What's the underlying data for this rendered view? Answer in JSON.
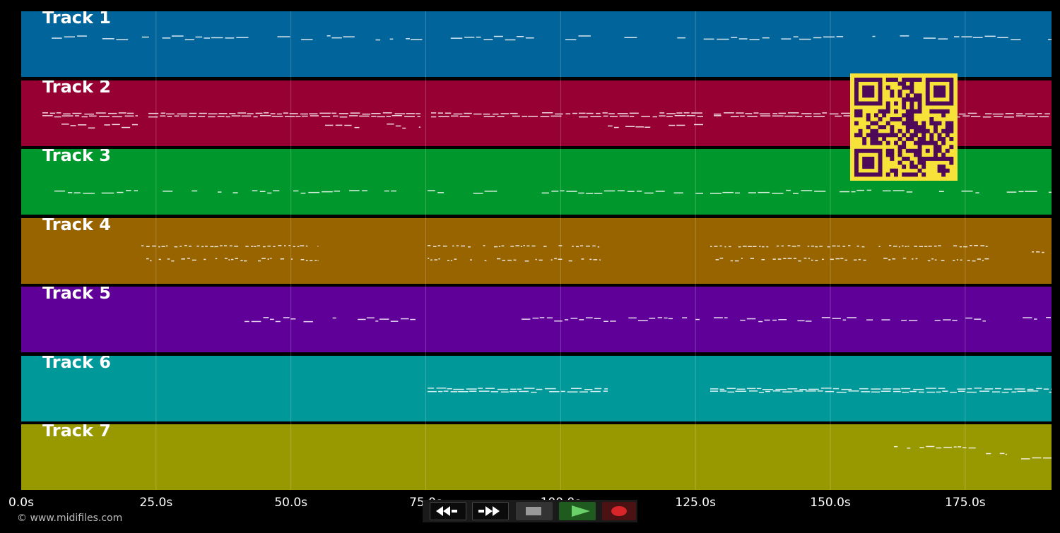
{
  "colors": {
    "background": "#000000",
    "qr_fg": "#4e0a58",
    "qr_bg": "#f7e23a"
  },
  "tracks": [
    {
      "label": "Track 1",
      "color": "#01649a",
      "pattern": "melody"
    },
    {
      "label": "Track 2",
      "color": "#970032",
      "pattern": "chords"
    },
    {
      "label": "Track 3",
      "color": "#00982c",
      "pattern": "bass"
    },
    {
      "label": "Track 4",
      "color": "#976400",
      "pattern": "dots"
    },
    {
      "label": "Track 5",
      "color": "#5f0099",
      "pattern": "arp"
    },
    {
      "label": "Track 6",
      "color": "#009898",
      "pattern": "chords"
    },
    {
      "label": "Track 7",
      "color": "#989800",
      "pattern": "sparse"
    }
  ],
  "timeline": {
    "duration_s": 191,
    "ticks": [
      "0.0s",
      "25.0s",
      "50.0s",
      "75.0s",
      "100.0s",
      "125.0s",
      "150.0s",
      "175.0s"
    ]
  },
  "copyright": "© www.midifiles.com",
  "transport": {
    "buttons": [
      {
        "name": "rewind-button",
        "icon": "rewind-icon"
      },
      {
        "name": "fast-forward-button",
        "icon": "fast-forward-icon"
      },
      {
        "name": "stop-button",
        "icon": "stop-icon"
      },
      {
        "name": "play-button",
        "icon": "play-icon"
      },
      {
        "name": "record-button",
        "icon": "record-icon"
      }
    ]
  }
}
